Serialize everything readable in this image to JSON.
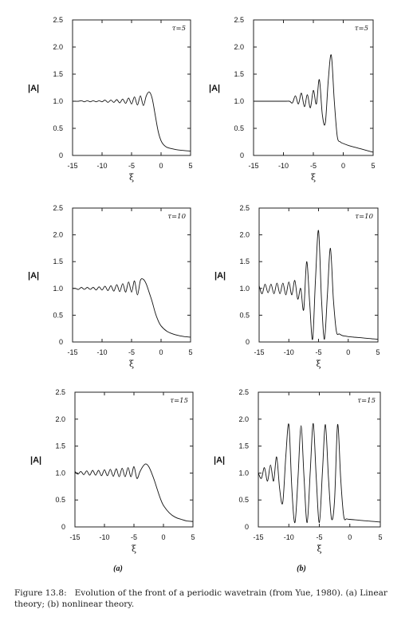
{
  "figure_label": "Figure 13.8:",
  "caption": {
    "label": "Figure 13.8:",
    "text": "Evolution of the front of a periodic wavetrain (from Yue, 1980). (a) Linear theory; (b) nonlinear theory."
  },
  "column_labels": [
    "(a)",
    "(b)"
  ],
  "chart_data": [
    {
      "type": "line",
      "column": "a",
      "row": 0,
      "annotation": "τ=5",
      "xlabel": "ξ",
      "ylabel": "|A|",
      "xlim": [
        -15,
        5
      ],
      "ylim": [
        0,
        2.5
      ],
      "xticks": [
        "-15",
        "-10",
        "-5",
        "0",
        "5"
      ],
      "yticks": [
        "0",
        "0.5",
        "1.0",
        "1.5",
        "2.0",
        "2.5"
      ],
      "series": [
        {
          "x": [
            -15,
            -14.5,
            -14,
            -13.5,
            -13,
            -12.5,
            -12,
            -11.5,
            -11,
            -10.5,
            -10,
            -9.5,
            -9,
            -8.5,
            -8,
            -7.5,
            -7,
            -6.5,
            -6,
            -5.5,
            -5,
            -4.5,
            -4,
            -3.5,
            -3,
            -2.5,
            -2,
            -1.5,
            -1,
            -0.5,
            0,
            0.5,
            1,
            2,
            3,
            4,
            5
          ],
          "y": [
            1.0,
            1.0,
            1.0,
            1.01,
            0.99,
            1.01,
            0.99,
            1.01,
            0.99,
            1.01,
            0.99,
            1.02,
            0.98,
            1.02,
            0.98,
            1.03,
            0.97,
            1.04,
            0.96,
            1.06,
            0.95,
            1.08,
            0.93,
            1.1,
            0.92,
            1.1,
            1.17,
            1.05,
            0.75,
            0.45,
            0.27,
            0.19,
            0.15,
            0.12,
            0.1,
            0.09,
            0.08
          ]
        }
      ]
    },
    {
      "type": "line",
      "column": "b",
      "row": 0,
      "annotation": "τ=5",
      "xlabel": "ξ",
      "ylabel": "|A|",
      "xlim": [
        -15,
        5
      ],
      "ylim": [
        0,
        2.5
      ],
      "xticks": [
        "-15",
        "-10",
        "-5",
        "0",
        "5"
      ],
      "yticks": [
        "0",
        "0.5",
        "1.0",
        "1.5",
        "2.0",
        "2.5"
      ],
      "series": [
        {
          "x": [
            -15,
            -10,
            -9,
            -8.5,
            -8,
            -7.5,
            -7,
            -6.5,
            -6,
            -5.5,
            -5,
            -4.5,
            -4,
            -3.5,
            -3,
            -2.5,
            -2,
            -1.5,
            -1,
            -0.5,
            0,
            1,
            2,
            3,
            4,
            5
          ],
          "y": [
            1.0,
            1.0,
            1.0,
            0.97,
            1.1,
            0.95,
            1.15,
            0.9,
            1.12,
            0.88,
            1.2,
            0.95,
            1.4,
            0.75,
            0.6,
            1.4,
            1.85,
            1.0,
            0.35,
            0.25,
            0.22,
            0.18,
            0.15,
            0.12,
            0.09,
            0.06
          ]
        }
      ]
    },
    {
      "type": "line",
      "column": "a",
      "row": 1,
      "annotation": "τ=10",
      "xlabel": "ξ",
      "ylabel": "|A|",
      "xlim": [
        -15,
        5
      ],
      "ylim": [
        0,
        2.5
      ],
      "xticks": [
        "-15",
        "-10",
        "-5",
        "0",
        "5"
      ],
      "yticks": [
        "0",
        "0.5",
        "1.0",
        "1.5",
        "2.0",
        "2.5"
      ],
      "series": [
        {
          "x": [
            -15,
            -14.5,
            -14,
            -13.5,
            -13,
            -12.5,
            -12,
            -11.5,
            -11,
            -10.5,
            -10,
            -9.5,
            -9,
            -8.5,
            -8,
            -7.5,
            -7,
            -6.5,
            -6,
            -5.5,
            -5,
            -4.5,
            -4,
            -3.5,
            -3,
            -2.5,
            -2,
            -1.5,
            -1,
            -0.5,
            0,
            1,
            2,
            3,
            4,
            5
          ],
          "y": [
            1.0,
            1.0,
            0.98,
            1.02,
            0.98,
            1.02,
            0.98,
            1.02,
            0.97,
            1.03,
            0.97,
            1.04,
            0.96,
            1.05,
            0.95,
            1.07,
            0.94,
            1.09,
            0.93,
            1.12,
            0.93,
            1.14,
            0.88,
            1.15,
            1.17,
            1.08,
            0.92,
            0.75,
            0.55,
            0.4,
            0.3,
            0.2,
            0.15,
            0.12,
            0.1,
            0.09
          ]
        }
      ]
    },
    {
      "type": "line",
      "column": "b",
      "row": 1,
      "annotation": "τ=10",
      "xlabel": "ξ",
      "ylabel": "|A|",
      "xlim": [
        -15,
        5
      ],
      "ylim": [
        0,
        2.5
      ],
      "xticks": [
        "-15",
        "-10",
        "-5",
        "0",
        "5"
      ],
      "yticks": [
        "0",
        "0.5",
        "1.0",
        "1.5",
        "2.0",
        "2.5"
      ],
      "series": [
        {
          "x": [
            -15,
            -14.5,
            -14,
            -13.5,
            -13,
            -12.5,
            -12,
            -11.5,
            -11,
            -10.5,
            -10,
            -9.5,
            -9,
            -8.5,
            -8,
            -7.5,
            -7,
            -6.5,
            -6,
            -5.5,
            -5,
            -4.5,
            -4,
            -3.5,
            -3,
            -2.5,
            -2,
            -1.5,
            -1,
            -0.5,
            0,
            1,
            2,
            3,
            4,
            5
          ],
          "y": [
            1.05,
            0.9,
            1.08,
            0.92,
            1.08,
            0.9,
            1.1,
            0.9,
            1.1,
            0.88,
            1.12,
            0.88,
            1.15,
            0.8,
            1.0,
            0.6,
            1.5,
            0.75,
            0.05,
            1.2,
            2.08,
            0.8,
            0.05,
            0.9,
            1.75,
            0.8,
            0.2,
            0.15,
            0.12,
            0.11,
            0.1,
            0.09,
            0.08,
            0.07,
            0.06,
            0.05
          ]
        }
      ]
    },
    {
      "type": "line",
      "column": "a",
      "row": 2,
      "annotation": "τ=15",
      "xlabel": "ξ",
      "ylabel": "|A|",
      "xlim": [
        -15,
        5
      ],
      "ylim": [
        0,
        2.5
      ],
      "xticks": [
        "-15",
        "-10",
        "-5",
        "0",
        "5"
      ],
      "yticks": [
        "0",
        "0.5",
        "1.0",
        "1.5",
        "2.0",
        "2.5"
      ],
      "series": [
        {
          "x": [
            -15,
            -14.5,
            -14,
            -13.5,
            -13,
            -12.5,
            -12,
            -11.5,
            -11,
            -10.5,
            -10,
            -9.5,
            -9,
            -8.5,
            -8,
            -7.5,
            -7,
            -6.5,
            -6,
            -5.5,
            -5,
            -4.5,
            -4,
            -3.5,
            -3,
            -2.5,
            -2,
            -1.5,
            -1,
            -0.5,
            0,
            1,
            2,
            3,
            4,
            5
          ],
          "y": [
            1.03,
            0.98,
            1.03,
            0.97,
            1.04,
            0.96,
            1.05,
            0.96,
            1.05,
            0.95,
            1.06,
            0.95,
            1.07,
            0.94,
            1.08,
            0.93,
            1.09,
            0.93,
            1.1,
            0.93,
            1.12,
            0.9,
            1.02,
            1.12,
            1.17,
            1.12,
            1.0,
            0.85,
            0.68,
            0.52,
            0.4,
            0.26,
            0.18,
            0.14,
            0.11,
            0.1
          ]
        }
      ]
    },
    {
      "type": "line",
      "column": "b",
      "row": 2,
      "annotation": "τ=15",
      "xlabel": "ξ",
      "ylabel": "|A|",
      "xlim": [
        -15,
        5
      ],
      "ylim": [
        0,
        2.5
      ],
      "xticks": [
        "-15",
        "-10",
        "-5",
        "0",
        "5"
      ],
      "yticks": [
        "0",
        "0.5",
        "1.0",
        "1.5",
        "2.0",
        "2.5"
      ],
      "series": [
        {
          "x": [
            -15,
            -14.5,
            -14,
            -13.5,
            -13,
            -12.5,
            -12,
            -11.5,
            -11,
            -10.5,
            -10,
            -9.5,
            -9,
            -8.5,
            -8,
            -7.5,
            -7,
            -6.5,
            -6,
            -5.5,
            -5,
            -4.5,
            -4,
            -3.5,
            -3,
            -2.5,
            -2,
            -1.5,
            -1,
            -0.5,
            0,
            1,
            2,
            3,
            4,
            5
          ],
          "y": [
            1.0,
            0.9,
            1.1,
            0.85,
            1.15,
            0.85,
            1.3,
            0.7,
            0.45,
            1.3,
            1.9,
            0.7,
            0.08,
            0.9,
            1.88,
            0.9,
            0.08,
            1.0,
            1.92,
            0.9,
            0.08,
            1.0,
            1.9,
            0.9,
            0.15,
            0.5,
            1.9,
            0.9,
            0.2,
            0.15,
            0.14,
            0.13,
            0.12,
            0.11,
            0.1,
            0.09
          ]
        }
      ]
    }
  ]
}
